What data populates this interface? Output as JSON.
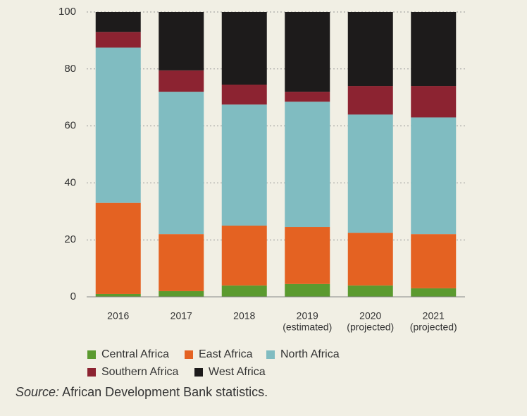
{
  "chart_data": {
    "type": "stacked_bar",
    "categories": [
      [
        "2016"
      ],
      [
        "2017"
      ],
      [
        "2018"
      ],
      [
        "2019",
        "(estimated)"
      ],
      [
        "2020",
        "(projected)"
      ],
      [
        "2021",
        "(projected)"
      ]
    ],
    "series": [
      {
        "name": "Central Africa",
        "color": "#5b9a2f",
        "values": [
          1,
          2,
          4,
          4.5,
          4,
          3
        ]
      },
      {
        "name": "East Africa",
        "color": "#e46222",
        "values": [
          32,
          20,
          21,
          20,
          18.5,
          19
        ]
      },
      {
        "name": "North Africa",
        "color": "#80bcc1",
        "values": [
          54.5,
          50,
          42.5,
          44,
          41.5,
          41
        ]
      },
      {
        "name": "Southern Africa",
        "color": "#8c2331",
        "values": [
          5.5,
          7.5,
          7,
          3.5,
          10,
          11
        ]
      },
      {
        "name": "West Africa",
        "color": "#1d1b1b",
        "values": [
          7,
          20.5,
          25.5,
          28,
          26,
          26
        ]
      }
    ],
    "ylim": [
      0,
      100
    ],
    "yticks": [
      0,
      20,
      40,
      60,
      80,
      100
    ],
    "grid": true,
    "legend": "bottom",
    "source": {
      "label": "Source:",
      "text": "African Development Bank statistics."
    }
  }
}
